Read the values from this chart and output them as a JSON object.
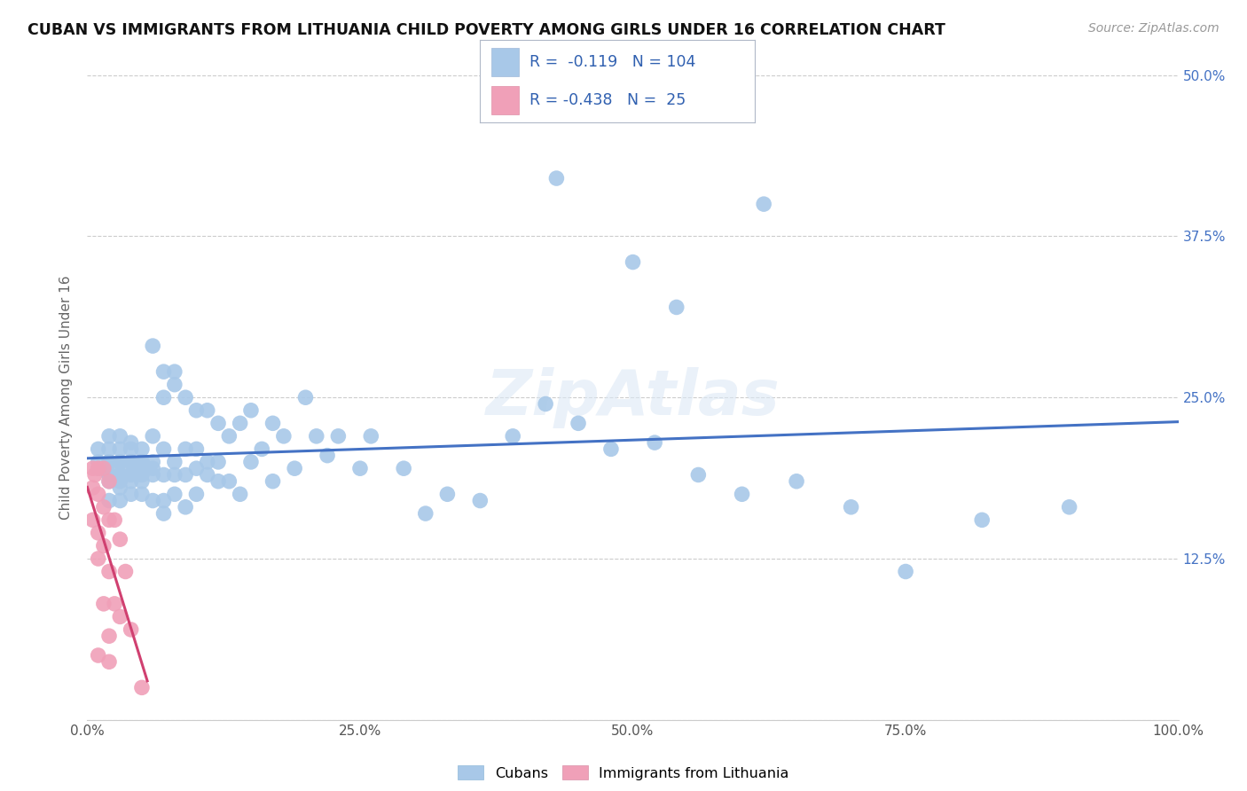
{
  "title": "CUBAN VS IMMIGRANTS FROM LITHUANIA CHILD POVERTY AMONG GIRLS UNDER 16 CORRELATION CHART",
  "source": "Source: ZipAtlas.com",
  "ylabel": "Child Poverty Among Girls Under 16",
  "xlim": [
    0,
    1.0
  ],
  "ylim": [
    0,
    0.5
  ],
  "xticks": [
    0.0,
    0.25,
    0.5,
    0.75,
    1.0
  ],
  "xticklabels": [
    "0.0%",
    "25.0%",
    "50.0%",
    "75.0%",
    "100.0%"
  ],
  "yticks": [
    0.0,
    0.125,
    0.25,
    0.375,
    0.5
  ],
  "yticklabels_right": [
    "",
    "12.5%",
    "25.0%",
    "37.5%",
    "50.0%"
  ],
  "cuban_color": "#a8c8e8",
  "lithuania_color": "#f0a0b8",
  "trendline_cuban_color": "#4472c4",
  "trendline_lithuania_color": "#d04070",
  "R_cuban": -0.119,
  "N_cuban": 104,
  "R_lithuania": -0.438,
  "N_lithuania": 25,
  "cuban_x": [
    0.01,
    0.01,
    0.01,
    0.02,
    0.02,
    0.02,
    0.02,
    0.02,
    0.02,
    0.02,
    0.02,
    0.02,
    0.03,
    0.03,
    0.03,
    0.03,
    0.03,
    0.03,
    0.03,
    0.03,
    0.03,
    0.04,
    0.04,
    0.04,
    0.04,
    0.04,
    0.04,
    0.04,
    0.04,
    0.05,
    0.05,
    0.05,
    0.05,
    0.05,
    0.05,
    0.05,
    0.06,
    0.06,
    0.06,
    0.06,
    0.06,
    0.06,
    0.07,
    0.07,
    0.07,
    0.07,
    0.07,
    0.07,
    0.08,
    0.08,
    0.08,
    0.08,
    0.08,
    0.09,
    0.09,
    0.09,
    0.09,
    0.1,
    0.1,
    0.1,
    0.1,
    0.11,
    0.11,
    0.11,
    0.12,
    0.12,
    0.12,
    0.13,
    0.13,
    0.14,
    0.14,
    0.15,
    0.15,
    0.16,
    0.17,
    0.17,
    0.18,
    0.19,
    0.2,
    0.21,
    0.22,
    0.23,
    0.25,
    0.26,
    0.29,
    0.31,
    0.33,
    0.36,
    0.39,
    0.42,
    0.45,
    0.48,
    0.52,
    0.56,
    0.6,
    0.65,
    0.7,
    0.75,
    0.82,
    0.9,
    0.43,
    0.5,
    0.54,
    0.62
  ],
  "cuban_y": [
    0.195,
    0.2,
    0.21,
    0.19,
    0.2,
    0.21,
    0.195,
    0.185,
    0.17,
    0.19,
    0.2,
    0.22,
    0.18,
    0.19,
    0.2,
    0.21,
    0.22,
    0.2,
    0.17,
    0.185,
    0.19,
    0.2,
    0.195,
    0.185,
    0.175,
    0.19,
    0.2,
    0.21,
    0.215,
    0.2,
    0.195,
    0.185,
    0.175,
    0.19,
    0.2,
    0.21,
    0.29,
    0.22,
    0.19,
    0.2,
    0.195,
    0.17,
    0.27,
    0.25,
    0.21,
    0.19,
    0.17,
    0.16,
    0.26,
    0.27,
    0.2,
    0.19,
    0.175,
    0.25,
    0.21,
    0.19,
    0.165,
    0.24,
    0.21,
    0.195,
    0.175,
    0.24,
    0.2,
    0.19,
    0.23,
    0.2,
    0.185,
    0.22,
    0.185,
    0.23,
    0.175,
    0.24,
    0.2,
    0.21,
    0.23,
    0.185,
    0.22,
    0.195,
    0.25,
    0.22,
    0.205,
    0.22,
    0.195,
    0.22,
    0.195,
    0.16,
    0.175,
    0.17,
    0.22,
    0.245,
    0.23,
    0.21,
    0.215,
    0.19,
    0.175,
    0.185,
    0.165,
    0.115,
    0.155,
    0.165,
    0.42,
    0.355,
    0.32,
    0.4
  ],
  "lithuania_x": [
    0.005,
    0.005,
    0.005,
    0.007,
    0.01,
    0.01,
    0.01,
    0.01,
    0.01,
    0.015,
    0.015,
    0.015,
    0.015,
    0.02,
    0.02,
    0.02,
    0.02,
    0.02,
    0.025,
    0.025,
    0.03,
    0.03,
    0.035,
    0.04,
    0.05
  ],
  "lithuania_y": [
    0.195,
    0.18,
    0.155,
    0.19,
    0.195,
    0.175,
    0.145,
    0.125,
    0.05,
    0.195,
    0.165,
    0.135,
    0.09,
    0.185,
    0.155,
    0.115,
    0.065,
    0.045,
    0.155,
    0.09,
    0.14,
    0.08,
    0.115,
    0.07,
    0.025
  ]
}
